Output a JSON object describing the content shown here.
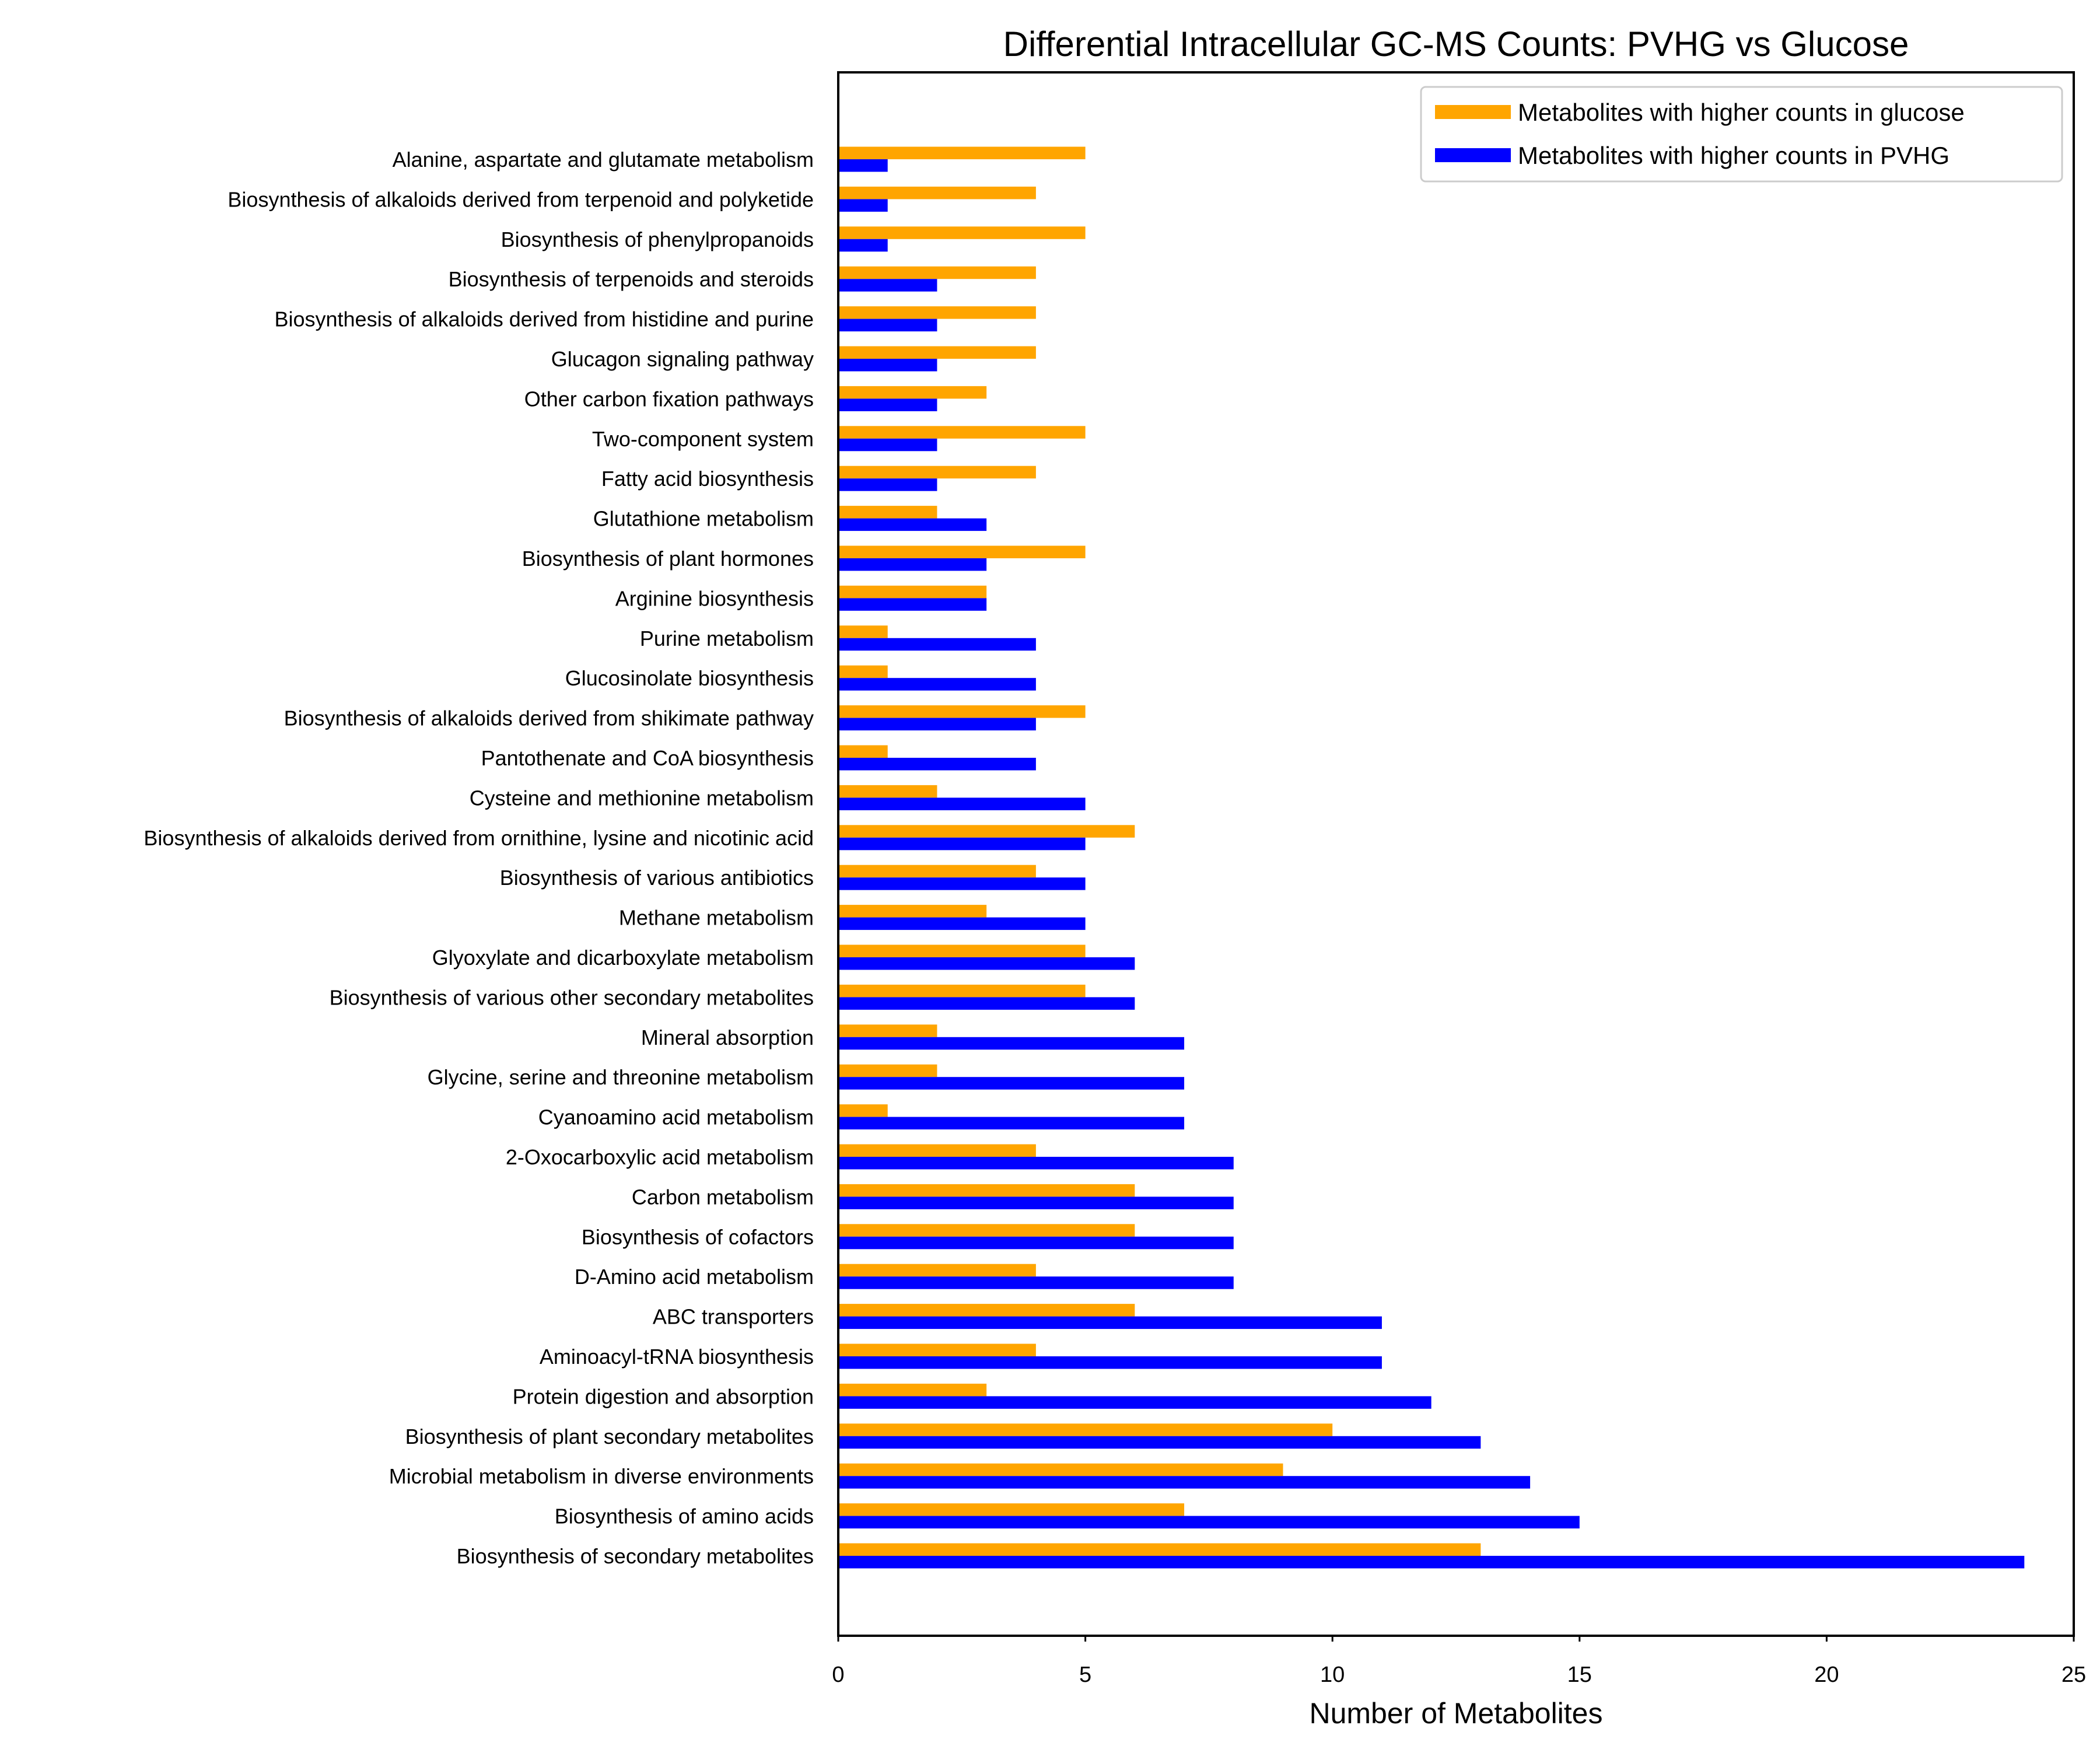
{
  "chart_data": {
    "type": "bar",
    "orientation": "horizontal",
    "title": "Differential Intracellular GC-MS Counts: PVHG vs Glucose",
    "xlabel": "Number of Metabolites",
    "ylabel": "",
    "xlim": [
      0,
      25
    ],
    "xticks": [
      0,
      5,
      10,
      15,
      20,
      25
    ],
    "grid": false,
    "legend_position": "top-right",
    "categories": [
      "Alanine, aspartate and glutamate metabolism",
      "Biosynthesis of alkaloids derived from terpenoid and polyketide",
      "Biosynthesis of phenylpropanoids",
      "Biosynthesis of terpenoids and steroids",
      "Biosynthesis of alkaloids derived from histidine and purine",
      "Glucagon signaling pathway",
      "Other carbon fixation pathways",
      "Two-component system",
      "Fatty acid biosynthesis",
      "Glutathione metabolism",
      "Biosynthesis of plant hormones",
      "Arginine biosynthesis",
      "Purine metabolism",
      "Glucosinolate biosynthesis",
      "Biosynthesis of alkaloids derived from shikimate pathway",
      "Pantothenate and CoA biosynthesis",
      "Cysteine and methionine metabolism",
      "Biosynthesis of alkaloids derived from ornithine, lysine and nicotinic acid",
      "Biosynthesis of various antibiotics",
      "Methane metabolism",
      "Glyoxylate and dicarboxylate metabolism",
      "Biosynthesis of various other secondary metabolites",
      "Mineral absorption",
      "Glycine, serine and threonine metabolism",
      "Cyanoamino acid metabolism",
      "2-Oxocarboxylic acid metabolism",
      "Carbon metabolism",
      "Biosynthesis of cofactors",
      "D-Amino acid metabolism",
      "ABC transporters",
      "Aminoacyl-tRNA biosynthesis",
      "Protein digestion and absorption",
      "Biosynthesis of plant secondary metabolites",
      "Microbial metabolism in diverse environments",
      "Biosynthesis of amino acids",
      "Biosynthesis of secondary metabolites"
    ],
    "series": [
      {
        "name": "Metabolites with higher counts in glucose",
        "color": "#FFA500",
        "values": [
          5,
          4,
          5,
          4,
          4,
          4,
          3,
          5,
          4,
          2,
          5,
          3,
          1,
          1,
          5,
          1,
          2,
          6,
          4,
          3,
          5,
          5,
          2,
          2,
          1,
          4,
          6,
          6,
          4,
          6,
          4,
          3,
          10,
          9,
          7,
          13
        ]
      },
      {
        "name": "Metabolites with higher counts in PVHG",
        "color": "#0000FF",
        "values": [
          1,
          1,
          1,
          2,
          2,
          2,
          2,
          2,
          2,
          3,
          3,
          3,
          4,
          4,
          4,
          4,
          5,
          5,
          5,
          5,
          6,
          6,
          7,
          7,
          7,
          8,
          8,
          8,
          8,
          11,
          11,
          12,
          13,
          14,
          15,
          24
        ]
      }
    ]
  }
}
